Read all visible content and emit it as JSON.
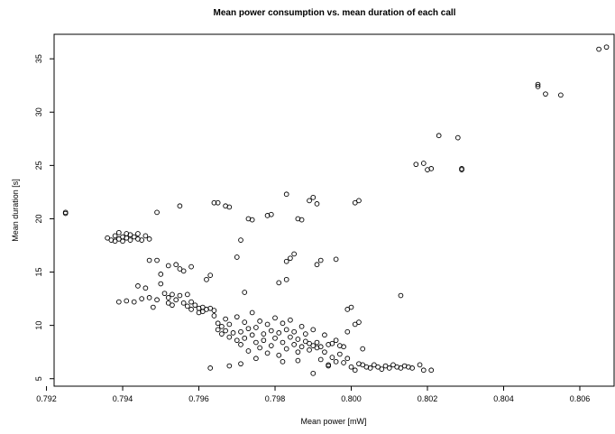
{
  "chart_data": {
    "type": "scatter",
    "title": "Mean power consumption vs. mean duration of each call",
    "xlabel": "Mean power [mW]",
    "ylabel": "Mean duration [s]",
    "xlim": [
      0.7922,
      0.8069
    ],
    "ylim": [
      4.3,
      37.3
    ],
    "x_ticks": [
      0.792,
      0.794,
      0.796,
      0.798,
      0.8,
      0.802,
      0.804,
      0.806
    ],
    "x_tick_labels": [
      "0.792",
      "0.794",
      "0.796",
      "0.798",
      "0.800",
      "0.802",
      "0.804",
      "0.806"
    ],
    "y_ticks": [
      5,
      10,
      15,
      20,
      25,
      30,
      35
    ],
    "y_tick_labels": [
      "5",
      "10",
      "15",
      "20",
      "25",
      "30",
      "35"
    ],
    "grid": false,
    "marker": "open-circle",
    "points": [
      [
        0.7925,
        20.5
      ],
      [
        0.7925,
        20.6
      ],
      [
        0.7937,
        18.0
      ],
      [
        0.7938,
        18.4
      ],
      [
        0.7939,
        18.7
      ],
      [
        0.7939,
        18.1
      ],
      [
        0.794,
        18.3
      ],
      [
        0.794,
        17.9
      ],
      [
        0.7941,
        18.6
      ],
      [
        0.7941,
        18.2
      ],
      [
        0.7942,
        18.0
      ],
      [
        0.7942,
        18.5
      ],
      [
        0.7943,
        18.3
      ],
      [
        0.7944,
        18.1
      ],
      [
        0.7944,
        18.6
      ],
      [
        0.7945,
        18.0
      ],
      [
        0.7938,
        17.9
      ],
      [
        0.7946,
        18.4
      ],
      [
        0.7936,
        18.2
      ],
      [
        0.7947,
        18.1
      ],
      [
        0.7939,
        12.2
      ],
      [
        0.7941,
        12.3
      ],
      [
        0.7943,
        12.2
      ],
      [
        0.7945,
        12.5
      ],
      [
        0.7944,
        13.7
      ],
      [
        0.7946,
        13.5
      ],
      [
        0.7947,
        12.6
      ],
      [
        0.7948,
        11.7
      ],
      [
        0.7949,
        12.4
      ],
      [
        0.795,
        14.8
      ],
      [
        0.795,
        13.9
      ],
      [
        0.7951,
        13.0
      ],
      [
        0.7952,
        12.6
      ],
      [
        0.7952,
        12.1
      ],
      [
        0.7953,
        12.9
      ],
      [
        0.7953,
        11.9
      ],
      [
        0.7954,
        12.4
      ],
      [
        0.7955,
        15.3
      ],
      [
        0.7955,
        12.8
      ],
      [
        0.7956,
        12.1
      ],
      [
        0.7957,
        11.8
      ],
      [
        0.7957,
        12.9
      ],
      [
        0.7958,
        12.2
      ],
      [
        0.7958,
        11.5
      ],
      [
        0.7959,
        11.9
      ],
      [
        0.796,
        11.6
      ],
      [
        0.796,
        11.2
      ],
      [
        0.7961,
        11.7
      ],
      [
        0.7961,
        11.3
      ],
      [
        0.7962,
        11.5
      ],
      [
        0.7962,
        14.3
      ],
      [
        0.7963,
        14.7
      ],
      [
        0.7963,
        11.6
      ],
      [
        0.7964,
        10.9
      ],
      [
        0.7964,
        11.4
      ],
      [
        0.7952,
        15.6
      ],
      [
        0.7954,
        15.7
      ],
      [
        0.7956,
        15.1
      ],
      [
        0.7958,
        15.5
      ],
      [
        0.7949,
        16.1
      ],
      [
        0.7947,
        16.1
      ],
      [
        0.7949,
        20.6
      ],
      [
        0.7955,
        21.2
      ],
      [
        0.7965,
        10.2
      ],
      [
        0.7965,
        9.6
      ],
      [
        0.7966,
        9.9
      ],
      [
        0.7966,
        9.2
      ],
      [
        0.7967,
        10.6
      ],
      [
        0.7967,
        9.5
      ],
      [
        0.7968,
        8.9
      ],
      [
        0.7968,
        10.1
      ],
      [
        0.7969,
        9.3
      ],
      [
        0.797,
        8.6
      ],
      [
        0.797,
        10.8
      ],
      [
        0.7971,
        9.4
      ],
      [
        0.7971,
        8.2
      ],
      [
        0.7972,
        10.3
      ],
      [
        0.7972,
        8.8
      ],
      [
        0.7973,
        9.7
      ],
      [
        0.7973,
        7.6
      ],
      [
        0.7974,
        9.1
      ],
      [
        0.7974,
        11.2
      ],
      [
        0.7975,
        8.4
      ],
      [
        0.7975,
        9.8
      ],
      [
        0.7976,
        7.9
      ],
      [
        0.7976,
        10.4
      ],
      [
        0.7977,
        9.2
      ],
      [
        0.7977,
        8.6
      ],
      [
        0.7978,
        10.1
      ],
      [
        0.7978,
        7.4
      ],
      [
        0.7979,
        9.5
      ],
      [
        0.7979,
        8.1
      ],
      [
        0.798,
        10.7
      ],
      [
        0.798,
        8.8
      ],
      [
        0.7981,
        9.3
      ],
      [
        0.7981,
        7.2
      ],
      [
        0.7982,
        10.2
      ],
      [
        0.7982,
        8.4
      ],
      [
        0.7983,
        9.6
      ],
      [
        0.7983,
        7.8
      ],
      [
        0.7984,
        8.9
      ],
      [
        0.7984,
        10.5
      ],
      [
        0.7985,
        8.2
      ],
      [
        0.7985,
        9.4
      ],
      [
        0.7986,
        7.5
      ],
      [
        0.7986,
        8.7
      ],
      [
        0.7987,
        9.9
      ],
      [
        0.7987,
        8.0
      ],
      [
        0.7988,
        8.5
      ],
      [
        0.7988,
        9.2
      ],
      [
        0.7989,
        7.7
      ],
      [
        0.7989,
        8.3
      ],
      [
        0.799,
        8.1
      ],
      [
        0.799,
        9.6
      ],
      [
        0.7991,
        7.9
      ],
      [
        0.7991,
        8.4
      ],
      [
        0.7992,
        6.8
      ],
      [
        0.7992,
        8.0
      ],
      [
        0.7993,
        9.1
      ],
      [
        0.7993,
        7.5
      ],
      [
        0.7994,
        8.2
      ],
      [
        0.7994,
        6.3
      ],
      [
        0.7995,
        8.3
      ],
      [
        0.7995,
        7.0
      ],
      [
        0.7996,
        8.6
      ],
      [
        0.7996,
        6.6
      ],
      [
        0.7997,
        8.1
      ],
      [
        0.7997,
        7.3
      ],
      [
        0.7998,
        6.5
      ],
      [
        0.7998,
        8.0
      ],
      [
        0.7999,
        6.9
      ],
      [
        0.7999,
        9.4
      ],
      [
        0.7968,
        6.2
      ],
      [
        0.7971,
        6.4
      ],
      [
        0.7963,
        6.0
      ],
      [
        0.7975,
        6.9
      ],
      [
        0.7982,
        6.6
      ],
      [
        0.7986,
        6.7
      ],
      [
        0.799,
        5.5
      ],
      [
        0.7994,
        6.2
      ],
      [
        0.8,
        6.1
      ],
      [
        0.8001,
        5.8
      ],
      [
        0.8002,
        6.4
      ],
      [
        0.8003,
        6.3
      ],
      [
        0.8004,
        6.1
      ],
      [
        0.8005,
        6.0
      ],
      [
        0.8006,
        6.3
      ],
      [
        0.8007,
        6.1
      ],
      [
        0.8008,
        5.9
      ],
      [
        0.8009,
        6.2
      ],
      [
        0.801,
        6.0
      ],
      [
        0.8011,
        6.3
      ],
      [
        0.8012,
        6.1
      ],
      [
        0.8013,
        6.0
      ],
      [
        0.8014,
        6.2
      ],
      [
        0.8015,
        6.1
      ],
      [
        0.8016,
        6.0
      ],
      [
        0.8018,
        6.3
      ],
      [
        0.8019,
        5.8
      ],
      [
        0.8021,
        5.8
      ],
      [
        0.8002,
        10.3
      ],
      [
        0.8001,
        10.1
      ],
      [
        0.8003,
        7.8
      ],
      [
        0.7999,
        11.5
      ],
      [
        0.8,
        11.7
      ],
      [
        0.8013,
        12.8
      ],
      [
        0.7964,
        21.5
      ],
      [
        0.7965,
        21.5
      ],
      [
        0.7967,
        21.2
      ],
      [
        0.7968,
        21.1
      ],
      [
        0.7973,
        20.0
      ],
      [
        0.7974,
        19.9
      ],
      [
        0.7978,
        20.3
      ],
      [
        0.7979,
        20.4
      ],
      [
        0.7983,
        22.3
      ],
      [
        0.7986,
        20.0
      ],
      [
        0.7987,
        19.9
      ],
      [
        0.7989,
        21.7
      ],
      [
        0.799,
        22.0
      ],
      [
        0.7991,
        21.4
      ],
      [
        0.8001,
        21.5
      ],
      [
        0.8002,
        21.7
      ],
      [
        0.7971,
        18.0
      ],
      [
        0.797,
        16.4
      ],
      [
        0.7983,
        16.0
      ],
      [
        0.7984,
        16.3
      ],
      [
        0.7985,
        16.7
      ],
      [
        0.7991,
        15.7
      ],
      [
        0.7992,
        16.1
      ],
      [
        0.7996,
        16.2
      ],
      [
        0.7981,
        14.0
      ],
      [
        0.7983,
        14.3
      ],
      [
        0.7972,
        13.1
      ],
      [
        0.8017,
        25.1
      ],
      [
        0.8019,
        25.2
      ],
      [
        0.802,
        24.6
      ],
      [
        0.8021,
        24.7
      ],
      [
        0.8023,
        27.8
      ],
      [
        0.8028,
        27.6
      ],
      [
        0.8029,
        24.6
      ],
      [
        0.8029,
        24.7
      ],
      [
        0.8049,
        32.4
      ],
      [
        0.8049,
        32.6
      ],
      [
        0.8051,
        31.7
      ],
      [
        0.8055,
        31.6
      ],
      [
        0.8065,
        35.9
      ],
      [
        0.8067,
        36.1
      ]
    ]
  }
}
